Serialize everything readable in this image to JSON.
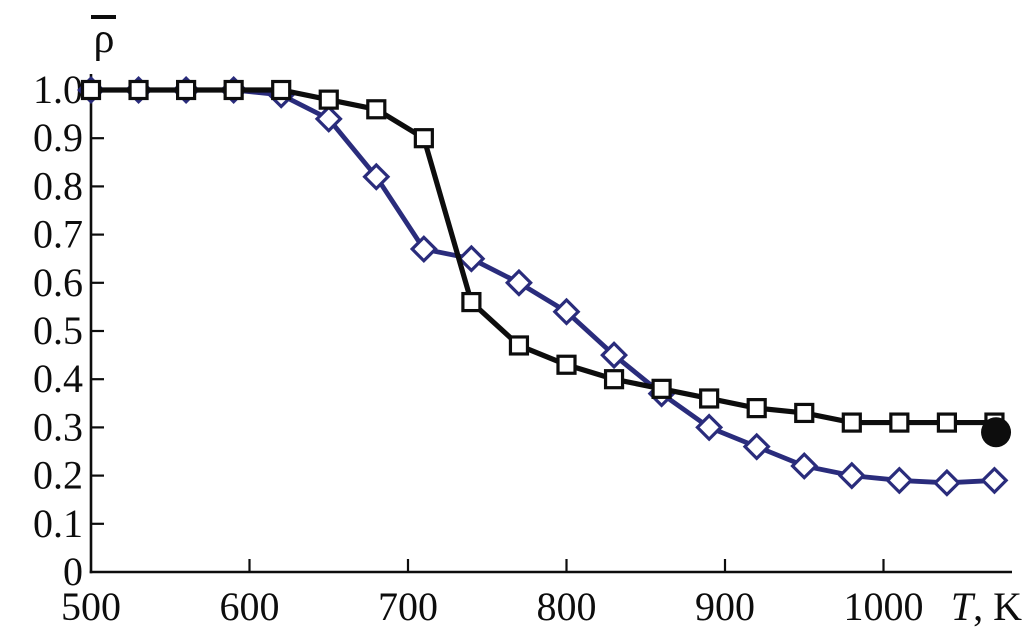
{
  "figure": {
    "background": "#ffffff"
  },
  "chart_data": {
    "type": "line",
    "title": "",
    "xlabel": "T, K",
    "ylabel": "ρ̄",
    "xlim": [
      500,
      1082
    ],
    "ylim": [
      0,
      1.04
    ],
    "grid": false,
    "legend": "none",
    "axis_color": "#0d0d0d",
    "x_ticks": [
      {
        "value": 500,
        "label": "500"
      },
      {
        "value": 600,
        "label": "600"
      },
      {
        "value": 700,
        "label": "700"
      },
      {
        "value": 800,
        "label": "800"
      },
      {
        "value": 900,
        "label": "900"
      },
      {
        "value": 1000,
        "label": "1000"
      }
    ],
    "y_ticks": [
      {
        "value": 0,
        "label": "0"
      },
      {
        "value": 0.1,
        "label": "0.1"
      },
      {
        "value": 0.2,
        "label": "0.2"
      },
      {
        "value": 0.3,
        "label": "0.3"
      },
      {
        "value": 0.4,
        "label": "0.4"
      },
      {
        "value": 0.5,
        "label": "0.5"
      },
      {
        "value": 0.6,
        "label": "0.6"
      },
      {
        "value": 0.7,
        "label": "0.7"
      },
      {
        "value": 0.8,
        "label": "0.8"
      },
      {
        "value": 0.9,
        "label": "0.9"
      },
      {
        "value": 1.0,
        "label": "1.0"
      }
    ],
    "x": [
      500,
      530,
      560,
      590,
      620,
      650,
      680,
      710,
      740,
      770,
      800,
      830,
      860,
      890,
      920,
      950,
      980,
      1010,
      1040,
      1070
    ],
    "series": [
      {
        "id": "blue-diamonds",
        "marker": "diamond",
        "color": "#2a2c7c",
        "values": [
          1.0,
          1.0,
          1.0,
          1.0,
          0.99,
          0.94,
          0.82,
          0.67,
          0.65,
          0.6,
          0.54,
          0.45,
          0.37,
          0.3,
          0.26,
          0.22,
          0.2,
          0.19,
          0.185,
          0.19
        ]
      },
      {
        "id": "black-squares",
        "marker": "square",
        "color": "#0d0d0d",
        "values": [
          1.0,
          1.0,
          1.0,
          1.0,
          1.0,
          0.98,
          0.96,
          0.9,
          0.56,
          0.47,
          0.43,
          0.4,
          0.38,
          0.36,
          0.34,
          0.33,
          0.31,
          0.31,
          0.31,
          0.31
        ]
      }
    ],
    "endpoint": {
      "id": "final-filled-circle",
      "marker": "filled-circle",
      "color": "#0d0d0d",
      "x": 1071,
      "y": 0.29
    }
  }
}
